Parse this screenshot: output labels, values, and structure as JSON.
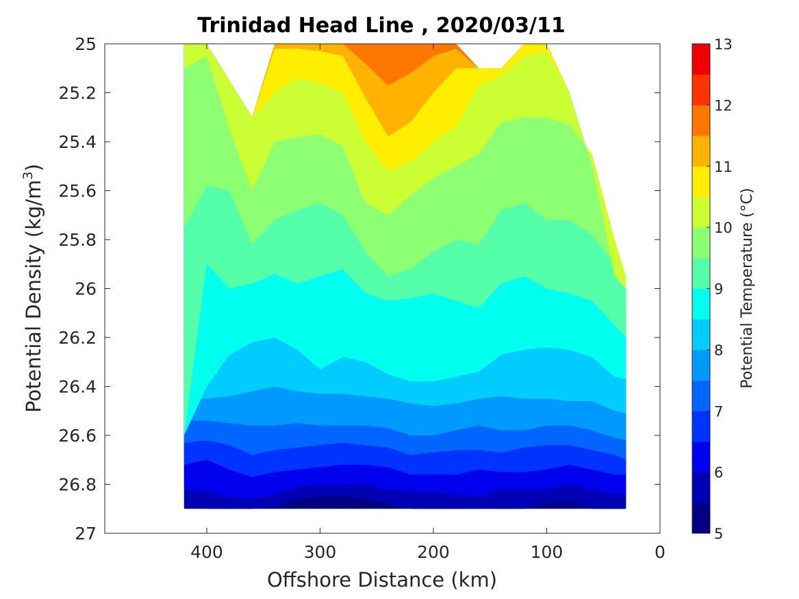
{
  "chart_data": {
    "type": "contour",
    "title": "Trinidad Head Line , 2020/03/11",
    "xlabel": "Offshore Distance (km)",
    "ylabel_main": "Potential Density (kg/m",
    "ylabel_sup": "3",
    "ylabel_close": ")",
    "xlim": [
      490,
      0
    ],
    "x_reversed": true,
    "ylim": [
      25,
      27
    ],
    "y_reversed": true,
    "x_ticks": [
      400,
      300,
      200,
      100,
      0
    ],
    "x_tick_labels": [
      "400",
      "300",
      "200",
      "100",
      "0"
    ],
    "y_ticks": [
      25,
      25.2,
      25.4,
      25.6,
      25.8,
      26,
      26.2,
      26.4,
      26.6,
      26.8,
      27
    ],
    "y_tick_labels": [
      "25",
      "25.2",
      "25.4",
      "25.6",
      "25.8",
      "26",
      "26.2",
      "26.4",
      "26.6",
      "26.8",
      "27"
    ],
    "grid": false,
    "colorbar": {
      "label": "Potential Temperature (°C)",
      "range": [
        5,
        13
      ],
      "ticks": [
        5,
        6,
        7,
        8,
        9,
        10,
        11,
        12,
        13
      ],
      "tick_labels": [
        "5",
        "6",
        "7",
        "8",
        "9",
        "10",
        "11",
        "12",
        "13"
      ],
      "levels": [
        5,
        5.5,
        6,
        6.5,
        7,
        7.5,
        8,
        8.5,
        9,
        9.5,
        10,
        10.5,
        11,
        11.5,
        12,
        12.5,
        13
      ],
      "colors": [
        "#000080",
        "#0000b5",
        "#0000ee",
        "#0033ff",
        "#0066ff",
        "#0099ff",
        "#00ccff",
        "#00ffee",
        "#55ffaa",
        "#8cff73",
        "#ccff33",
        "#ffee00",
        "#ffb300",
        "#ff7700",
        "#ff3300",
        "#ee0000",
        "#aa0000"
      ]
    },
    "stations_x": [
      420,
      400,
      380,
      360,
      340,
      320,
      300,
      280,
      260,
      240,
      220,
      200,
      180,
      160,
      140,
      120,
      100,
      80,
      60,
      40,
      30
    ],
    "fill_bottom": 26.9,
    "top_boundary": [
      25.0,
      25.0,
      25.15,
      25.3,
      25.0,
      25.0,
      25.0,
      25.0,
      25.0,
      25.0,
      25.0,
      25.0,
      25.0,
      25.1,
      25.1,
      25.0,
      25.0,
      25.2,
      25.5,
      25.95,
      26.0
    ],
    "isopycnal_depth_of_isotherms": [
      {
        "t": 5.5,
        "depth": [
          26.89,
          26.9,
          26.9,
          26.9,
          26.89,
          26.86,
          26.85,
          26.85,
          26.86,
          26.88,
          26.9,
          26.9,
          26.9,
          26.9,
          26.9,
          26.9,
          26.88,
          26.87,
          26.9,
          26.9,
          26.9
        ]
      },
      {
        "t": 6.0,
        "depth": [
          26.82,
          26.83,
          26.85,
          26.86,
          26.84,
          26.81,
          26.8,
          26.8,
          26.8,
          26.82,
          26.83,
          26.83,
          26.84,
          26.85,
          26.82,
          26.82,
          26.82,
          26.8,
          26.82,
          26.84,
          26.84
        ]
      },
      {
        "t": 6.5,
        "depth": [
          26.72,
          26.7,
          26.74,
          26.77,
          26.75,
          26.74,
          26.73,
          26.72,
          26.72,
          26.73,
          26.76,
          26.76,
          26.76,
          26.74,
          26.75,
          26.75,
          26.74,
          26.72,
          26.74,
          26.76,
          26.76
        ]
      },
      {
        "t": 7.0,
        "depth": [
          26.63,
          26.62,
          26.64,
          26.68,
          26.66,
          26.65,
          26.64,
          26.63,
          26.64,
          26.65,
          26.68,
          26.67,
          26.66,
          26.66,
          26.67,
          26.65,
          26.64,
          26.64,
          26.66,
          26.68,
          26.7
        ]
      },
      {
        "t": 7.5,
        "depth": [
          26.54,
          26.54,
          26.55,
          26.56,
          26.56,
          26.55,
          26.56,
          26.56,
          26.56,
          26.57,
          26.6,
          26.6,
          26.58,
          26.56,
          26.58,
          26.58,
          26.56,
          26.56,
          26.58,
          26.61,
          26.62
        ]
      },
      {
        "t": 8.0,
        "depth": [
          26.45,
          26.45,
          26.44,
          26.42,
          26.4,
          26.42,
          26.43,
          26.43,
          26.44,
          26.45,
          26.47,
          26.48,
          26.47,
          26.45,
          26.44,
          26.45,
          26.45,
          26.46,
          26.46,
          26.5,
          26.51
        ]
      },
      {
        "t": 8.5,
        "depth": [
          26.6,
          26.4,
          26.27,
          26.22,
          26.2,
          26.25,
          26.33,
          26.28,
          26.3,
          26.35,
          26.38,
          26.38,
          26.36,
          26.34,
          26.27,
          26.25,
          26.24,
          26.25,
          26.28,
          26.36,
          26.37
        ]
      },
      {
        "t": 9.0,
        "depth": [
          26.6,
          25.9,
          26.0,
          25.98,
          25.94,
          25.98,
          25.95,
          25.92,
          26.02,
          26.05,
          26.04,
          26.02,
          26.05,
          26.08,
          25.98,
          25.95,
          26.0,
          26.02,
          26.05,
          26.15,
          26.2
        ]
      },
      {
        "t": 9.5,
        "depth": [
          25.75,
          25.58,
          25.6,
          25.82,
          25.72,
          25.68,
          25.65,
          25.7,
          25.85,
          25.95,
          25.92,
          25.85,
          25.8,
          25.82,
          25.68,
          25.65,
          25.72,
          25.72,
          25.78,
          25.9,
          26.0
        ]
      },
      {
        "t": 10.0,
        "depth": [
          25.1,
          25.05,
          25.35,
          25.6,
          25.4,
          25.38,
          25.37,
          25.42,
          25.65,
          25.7,
          25.62,
          25.55,
          25.5,
          25.45,
          25.32,
          25.3,
          25.3,
          25.33,
          25.45,
          25.8,
          25.95
        ]
      },
      {
        "t": 10.5,
        "depth": [
          25.0,
          25.0,
          25.15,
          25.3,
          25.2,
          25.14,
          25.16,
          25.2,
          25.4,
          25.52,
          25.48,
          25.4,
          25.34,
          25.17,
          25.13,
          25.05,
          25.03,
          25.2,
          25.5,
          25.95,
          26.0
        ]
      },
      {
        "t": 11.0,
        "depth": [
          25.0,
          25.0,
          25.15,
          25.3,
          25.02,
          25.02,
          25.03,
          25.05,
          25.22,
          25.38,
          25.32,
          25.2,
          25.1,
          25.1,
          25.1,
          25.0,
          25.0,
          25.2,
          25.5,
          25.95,
          26.0
        ]
      },
      {
        "t": 11.5,
        "depth": [
          25.0,
          25.0,
          25.15,
          25.3,
          25.0,
          25.0,
          25.0,
          25.0,
          25.08,
          25.17,
          25.12,
          25.05,
          25.02,
          25.1,
          25.1,
          25.0,
          25.0,
          25.2,
          25.5,
          25.95,
          26.0
        ]
      }
    ]
  }
}
